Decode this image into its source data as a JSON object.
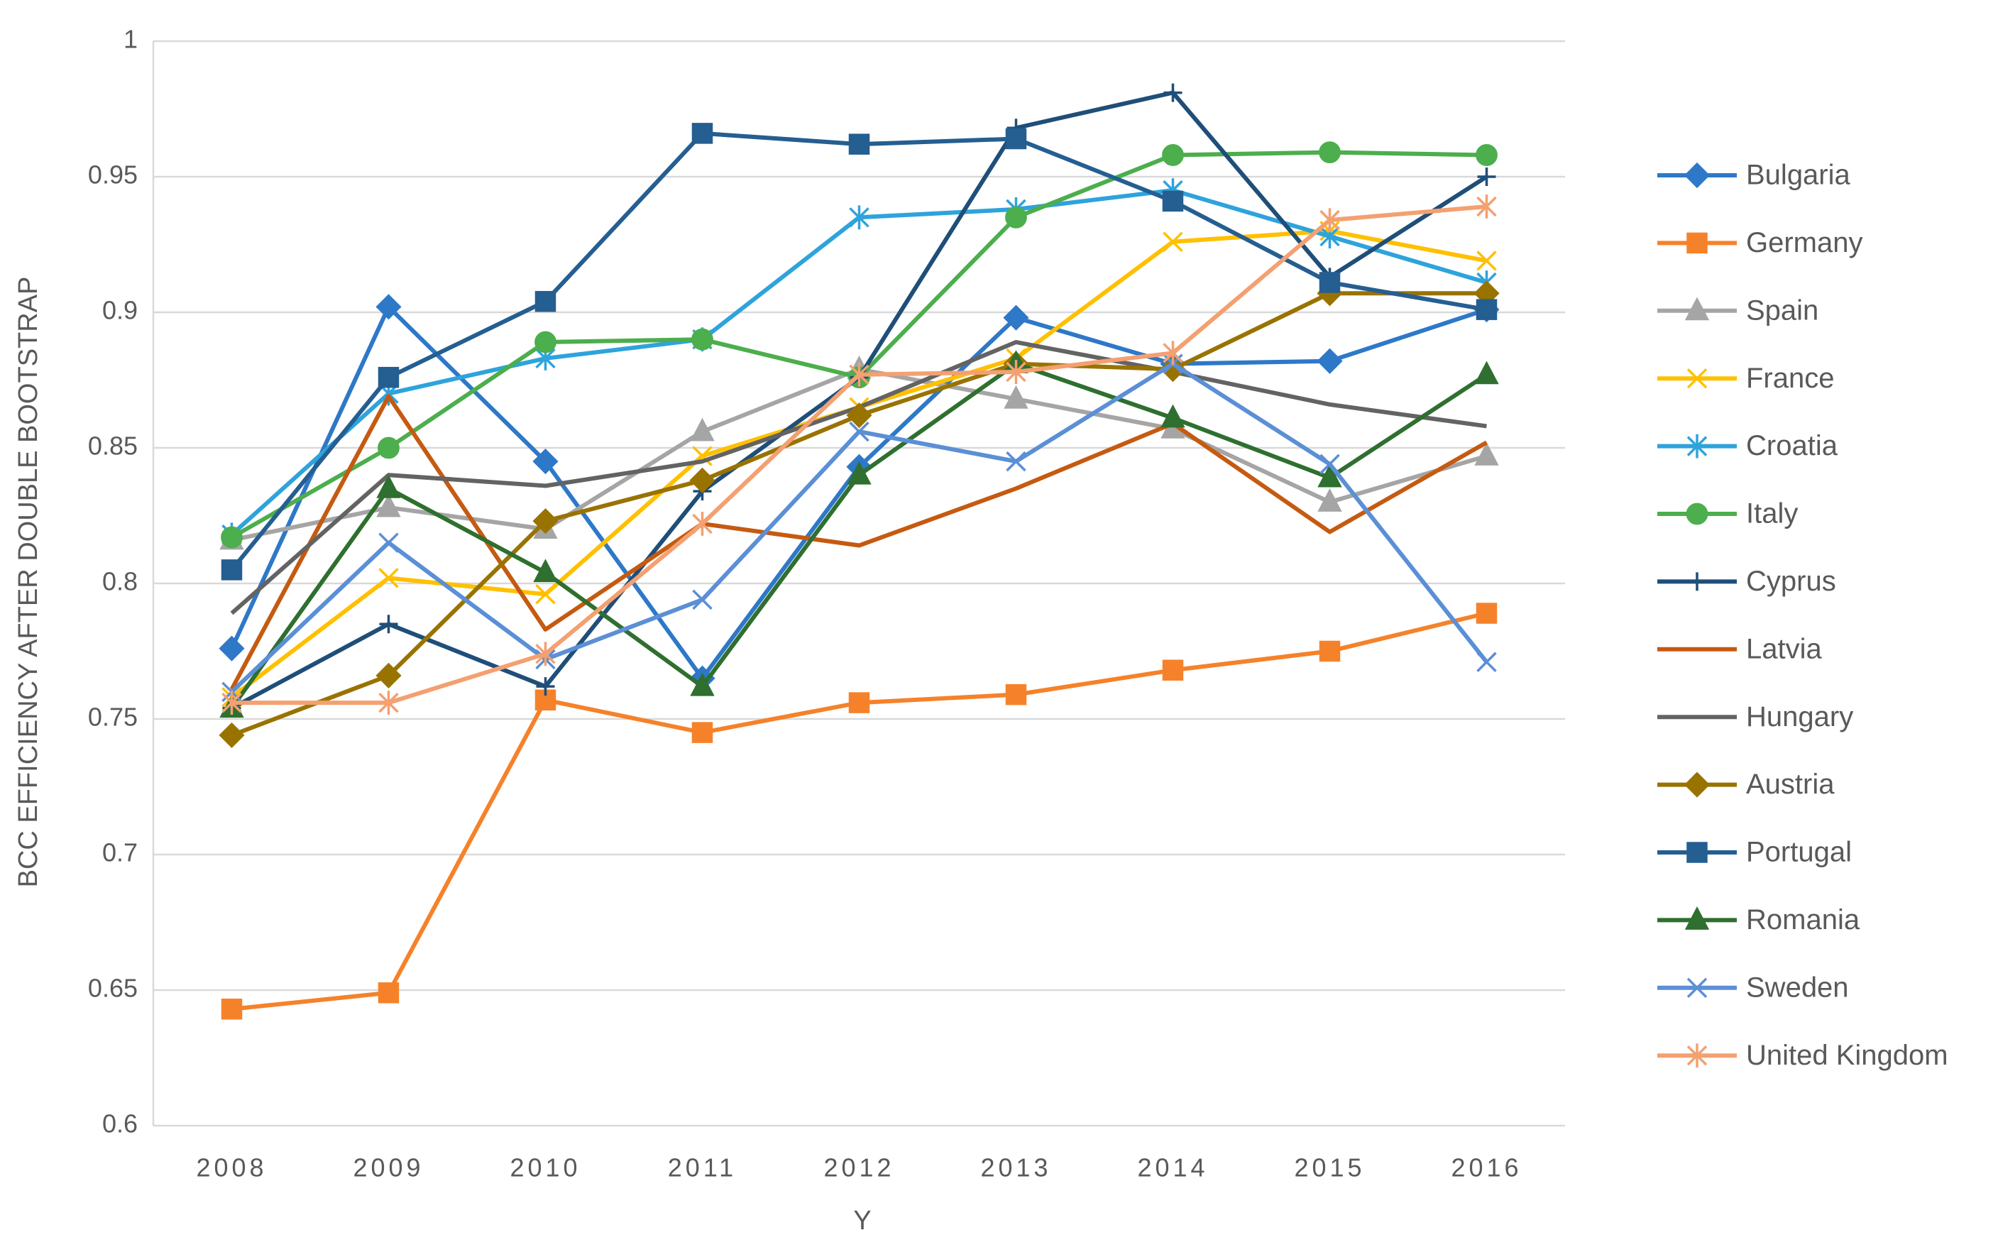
{
  "chart_data": {
    "type": "line",
    "x_label": "Y",
    "y_label": "BCC EFFICIENCY AFTER DOUBLE BOOTSTRAP",
    "categories": [
      "2008",
      "2009",
      "2010",
      "2011",
      "2012",
      "2013",
      "2014",
      "2015",
      "2016"
    ],
    "ylim": [
      0.6,
      1
    ],
    "yticks": [
      0.6,
      0.65,
      0.7,
      0.75,
      0.8,
      0.85,
      0.9,
      0.95,
      1
    ],
    "grid": true,
    "legend": "right",
    "series": [
      {
        "name": "Bulgaria",
        "color": "#2e78c8",
        "marker": "diamond",
        "values": [
          0.776,
          0.902,
          0.845,
          0.765,
          0.843,
          0.898,
          0.881,
          0.882,
          0.901
        ]
      },
      {
        "name": "Germany",
        "color": "#f5822a",
        "marker": "square",
        "values": [
          0.643,
          0.649,
          0.757,
          0.745,
          0.756,
          0.759,
          0.768,
          0.775,
          0.789
        ]
      },
      {
        "name": "Spain",
        "color": "#a5a5a5",
        "marker": "triangle",
        "values": [
          0.816,
          0.828,
          0.82,
          0.856,
          0.879,
          0.868,
          0.857,
          0.83,
          0.847
        ]
      },
      {
        "name": "France",
        "color": "#ffc000",
        "marker": "x",
        "values": [
          0.758,
          0.802,
          0.796,
          0.847,
          0.865,
          0.883,
          0.926,
          0.93,
          0.919
        ]
      },
      {
        "name": "Croatia",
        "color": "#2ea3dc",
        "marker": "star",
        "values": [
          0.818,
          0.87,
          0.883,
          0.89,
          0.935,
          0.938,
          0.945,
          0.928,
          0.911
        ]
      },
      {
        "name": "Italy",
        "color": "#4cae4c",
        "marker": "circle",
        "values": [
          0.817,
          0.85,
          0.889,
          0.89,
          0.876,
          0.935,
          0.958,
          0.959,
          0.958
        ]
      },
      {
        "name": "Cyprus",
        "color": "#1f4e79",
        "marker": "plus",
        "values": [
          0.754,
          0.785,
          0.762,
          0.834,
          0.876,
          0.968,
          0.981,
          0.913,
          0.95
        ]
      },
      {
        "name": "Latvia",
        "color": "#c55a11",
        "marker": "none",
        "values": [
          0.761,
          0.869,
          0.783,
          0.822,
          0.814,
          0.835,
          0.859,
          0.819,
          0.852
        ]
      },
      {
        "name": "Hungary",
        "color": "#636363",
        "marker": "none",
        "values": [
          0.789,
          0.84,
          0.836,
          0.845,
          0.865,
          0.889,
          0.878,
          0.866,
          0.858
        ]
      },
      {
        "name": "Austria",
        "color": "#997300",
        "marker": "diamond",
        "values": [
          0.744,
          0.766,
          0.823,
          0.838,
          0.862,
          0.881,
          0.879,
          0.907,
          0.907
        ]
      },
      {
        "name": "Portugal",
        "color": "#255e91",
        "marker": "square",
        "values": [
          0.805,
          0.876,
          0.904,
          0.966,
          0.962,
          0.964,
          0.941,
          0.911,
          0.901
        ]
      },
      {
        "name": "Romania",
        "color": "#2f6f2f",
        "marker": "triangle",
        "values": [
          0.754,
          0.835,
          0.804,
          0.762,
          0.84,
          0.881,
          0.861,
          0.839,
          0.877
        ]
      },
      {
        "name": "Sweden",
        "color": "#5b8fd6",
        "marker": "x",
        "values": [
          0.76,
          0.815,
          0.772,
          0.794,
          0.856,
          0.845,
          0.881,
          0.844,
          0.771
        ]
      },
      {
        "name": "United Kingdom",
        "color": "#f4a070",
        "marker": "star",
        "values": [
          0.756,
          0.756,
          0.774,
          0.822,
          0.877,
          0.878,
          0.885,
          0.934,
          0.939
        ]
      }
    ]
  }
}
